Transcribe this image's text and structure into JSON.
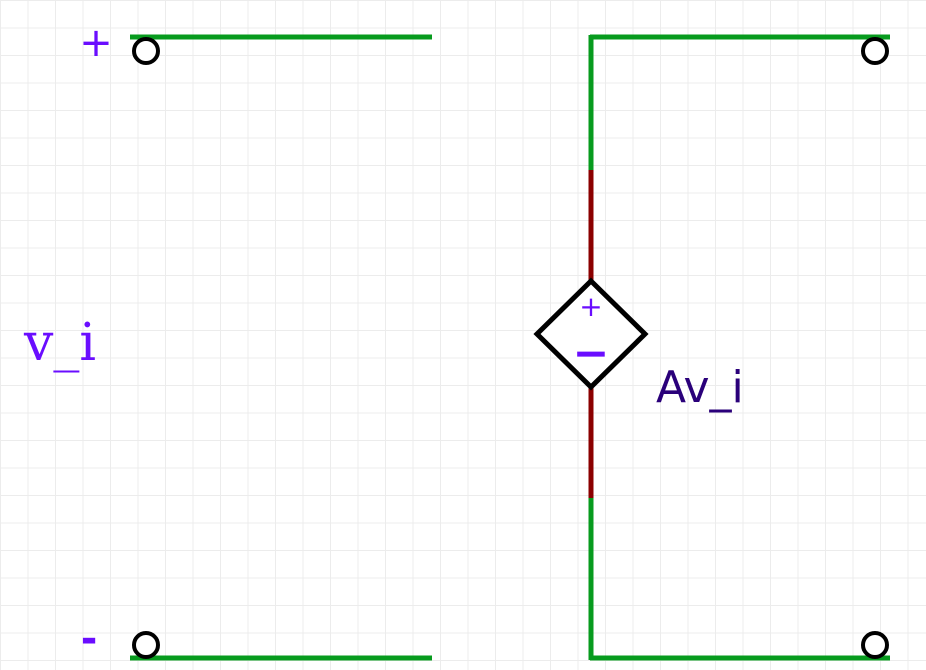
{
  "colors": {
    "wire": "#079b1e",
    "source_lead": "#8b0000",
    "terminal_stroke": "#000000",
    "polarity": "#6a0dff",
    "input_label": "#6a0dff",
    "gain_label": "#2a007a"
  },
  "input_port": {
    "plus_sign": "+",
    "minus_sign": "-",
    "label": "v_i"
  },
  "source": {
    "plus_sign": "+",
    "minus_sign": "−",
    "gain_label": "Av_i"
  }
}
